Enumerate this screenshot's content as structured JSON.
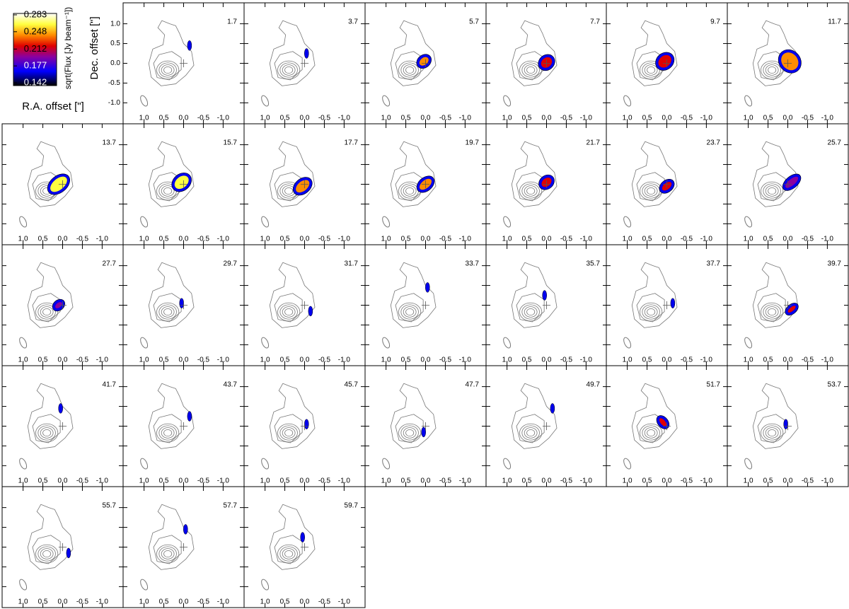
{
  "chart_data": {
    "type": "channel_map",
    "x_label": "R.A. offset [\"]",
    "y_label": "Dec. offset [\"]",
    "colorbar": {
      "label": "sqrt(Flux [Jy beam⁻¹])",
      "lim": [
        0.142,
        0.283
      ],
      "ticks": [
        0.142,
        0.177,
        0.212,
        0.248,
        0.283
      ]
    },
    "xlim": [
      1.53,
      -1.53
    ],
    "ylim": [
      -1.53,
      1.53
    ],
    "xticks": [
      {
        "value": 1,
        "label": "1.0"
      },
      {
        "value": 0.5,
        "label": "0.5"
      },
      {
        "value": 0,
        "label": "0.0"
      },
      {
        "value": -0.5,
        "label": "-0.5"
      },
      {
        "value": -1,
        "label": "-1.0"
      }
    ],
    "yticks": [
      {
        "value": 1,
        "label": "1.0"
      },
      {
        "value": 0.5,
        "label": "0.5"
      },
      {
        "value": 0,
        "label": "0.0"
      },
      {
        "value": -0.5,
        "label": "-0.5"
      },
      {
        "value": -1,
        "label": "-1.0"
      }
    ],
    "panels": [
      "1.7",
      "3.7",
      "5.7",
      "7.7",
      "9.7",
      "11.7",
      "13.7",
      "15.7",
      "17.7",
      "19.7",
      "21.7",
      "23.7",
      "25.7",
      "27.7",
      "29.7",
      "31.7",
      "33.7",
      "35.7",
      "37.7",
      "39.7",
      "41.7",
      "43.7",
      "45.7",
      "47.7",
      "49.7",
      "51.7",
      "53.7",
      "55.7",
      "57.7",
      "59.7"
    ]
  }
}
